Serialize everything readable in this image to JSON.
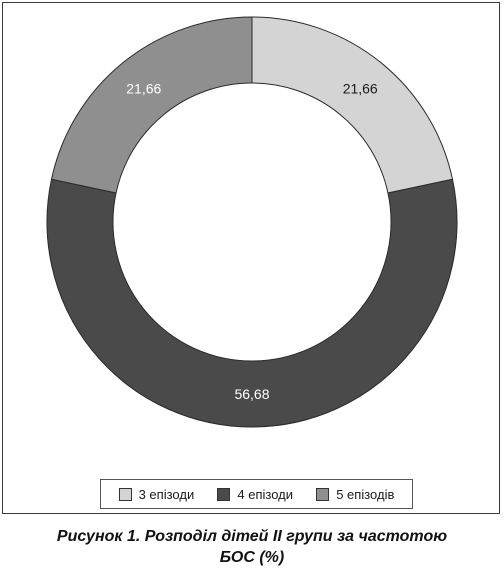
{
  "chart_data": {
    "type": "pie",
    "style": "donut",
    "categories": [
      "3 епізоди",
      "4 епізоди",
      "5 епізодів"
    ],
    "values": [
      21.66,
      56.68,
      21.66
    ],
    "value_labels": [
      "21,66",
      "56,68",
      "21,66"
    ],
    "colors": [
      "#d4d4d4",
      "#4a4a4a",
      "#8f8f8f"
    ],
    "label_colors": [
      "#1a1a1a",
      "#ffffff",
      "#ffffff"
    ],
    "legend_position": "bottom",
    "unit": "%"
  },
  "caption": {
    "line1": "Рисунок 1. Розподіл дітей II групи за частотою",
    "line2": "БОС (%)"
  }
}
